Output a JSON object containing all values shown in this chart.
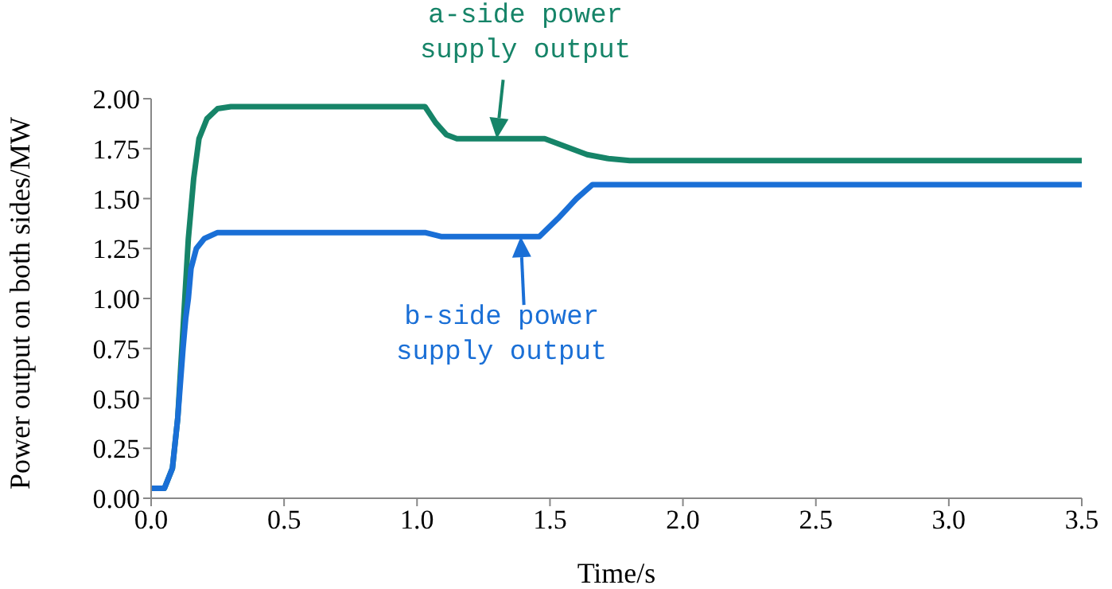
{
  "chart_data": {
    "type": "line",
    "xlabel": "Time/s",
    "ylabel": "Power output on both sides/MW",
    "xlim": [
      0,
      3.5
    ],
    "xticks": [
      {
        "value": 0,
        "label": "0.0"
      },
      {
        "value": 0.5,
        "label": "0.5"
      },
      {
        "value": 1,
        "label": "1.0"
      },
      {
        "value": 1.5,
        "label": "1.5"
      },
      {
        "value": 2,
        "label": "2.0"
      },
      {
        "value": 2.5,
        "label": "2.5"
      },
      {
        "value": 3,
        "label": "3.0"
      },
      {
        "value": 3.5,
        "label": "3.5"
      }
    ],
    "ylim": [
      0,
      2
    ],
    "yticks": [
      {
        "value": 0,
        "label": "0.00"
      },
      {
        "value": 0.25,
        "label": "0.25"
      },
      {
        "value": 0.5,
        "label": "0.50"
      },
      {
        "value": 0.75,
        "label": "0.75"
      },
      {
        "value": 1,
        "label": "1.00"
      },
      {
        "value": 1.25,
        "label": "1.25"
      },
      {
        "value": 1.5,
        "label": "1.50"
      },
      {
        "value": 1.75,
        "label": "1.75"
      },
      {
        "value": 2,
        "label": "2.00"
      }
    ],
    "grid": false,
    "legend": false,
    "marker": "none",
    "line_style": "solid",
    "series": [
      {
        "color": "#168468",
        "x": [
          0,
          0.05,
          0.08,
          0.1,
          0.12,
          0.14,
          0.16,
          0.18,
          0.21,
          0.25,
          0.3,
          1.03,
          1.07,
          1.11,
          1.15,
          1.48,
          1.56,
          1.64,
          1.72,
          1.8,
          3.5
        ],
        "values": [
          0.05,
          0.05,
          0.15,
          0.4,
          0.85,
          1.3,
          1.6,
          1.8,
          1.9,
          1.95,
          1.96,
          1.96,
          1.88,
          1.82,
          1.8,
          1.8,
          1.76,
          1.72,
          1.7,
          1.69,
          1.69
        ]
      },
      {
        "color": "#1a6fd6",
        "x": [
          0,
          0.05,
          0.08,
          0.1,
          0.12,
          0.13,
          0.14,
          0.15,
          0.17,
          0.2,
          0.25,
          1.03,
          1.09,
          1.46,
          1.53,
          1.6,
          1.66,
          3.5
        ],
        "values": [
          0.05,
          0.05,
          0.15,
          0.4,
          0.75,
          0.9,
          1.0,
          1.15,
          1.25,
          1.3,
          1.33,
          1.33,
          1.31,
          1.31,
          1.4,
          1.5,
          1.57,
          1.57
        ]
      }
    ],
    "annotations": [
      {
        "text": "a-side power supply output",
        "x": 1.3,
        "y": 1.8
      },
      {
        "text": "b-side power supply output",
        "x": 1.39,
        "y": 1.31
      }
    ]
  }
}
